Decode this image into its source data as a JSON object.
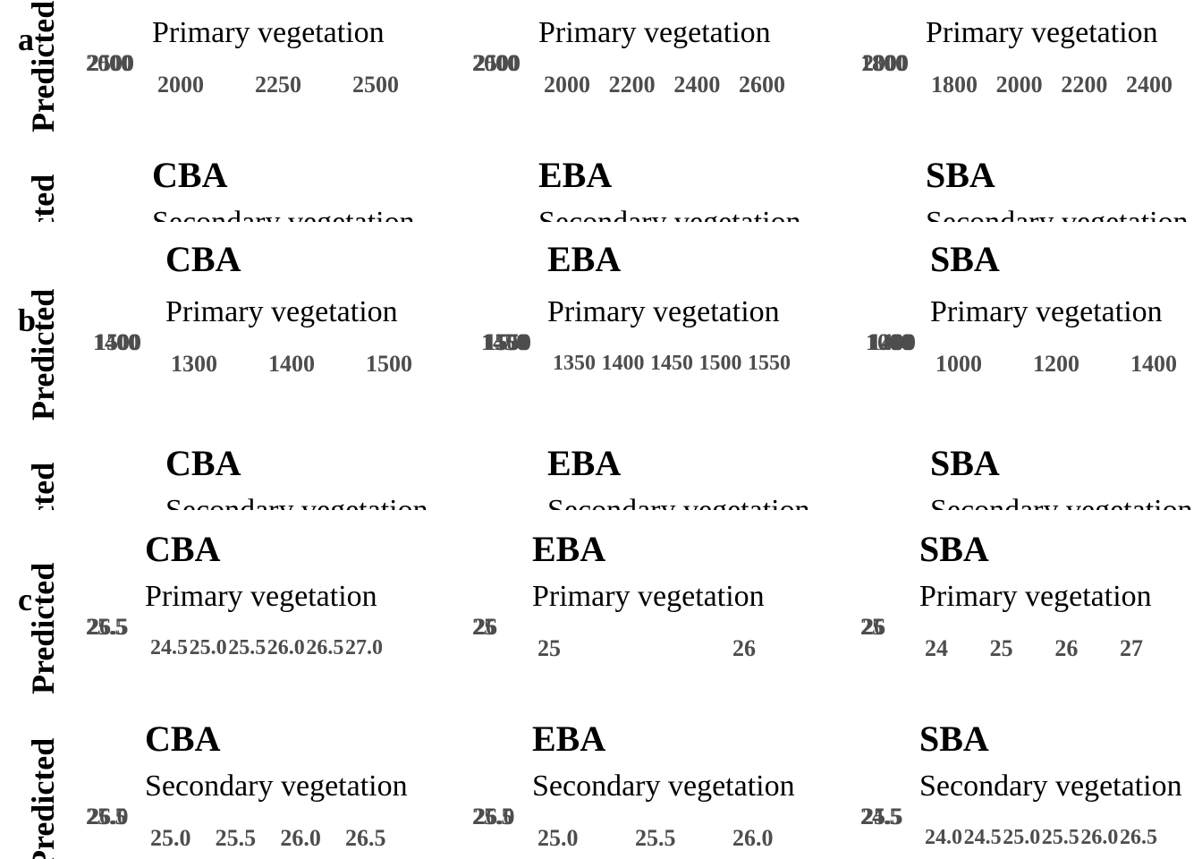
{
  "chart_data": [
    {
      "type": "scatter",
      "panel": "a",
      "ylabel": "Predicted",
      "facets": [
        {
          "region": "",
          "vegetation": "Primary vegetation",
          "x_ticks": [
            "2000",
            "2250",
            "2500"
          ],
          "y_ticks": [
            "2000",
            "2500"
          ]
        },
        {
          "region": "",
          "vegetation": "Primary vegetation",
          "x_ticks": [
            "2000",
            "2200",
            "2400",
            "2600"
          ],
          "y_ticks": [
            "2000",
            "2500"
          ]
        },
        {
          "region": "",
          "vegetation": "Primary vegetation",
          "x_ticks": [
            "1800",
            "2000",
            "2200",
            "2400"
          ],
          "y_ticks": [
            "1800",
            "2000"
          ]
        },
        {
          "region": "CBA",
          "vegetation": "Secondary vegetation",
          "x_ticks": [],
          "y_ticks": []
        },
        {
          "region": "EBA",
          "vegetation": "Secondary vegetation",
          "x_ticks": [],
          "y_ticks": []
        },
        {
          "region": "SBA",
          "vegetation": "Secondary vegetation",
          "x_ticks": [],
          "y_ticks": []
        }
      ]
    },
    {
      "type": "scatter",
      "panel": "b",
      "ylabel": "Predicted",
      "facets": [
        {
          "region": "CBA",
          "vegetation": "Primary vegetation",
          "x_ticks": [
            "1300",
            "1400",
            "1500"
          ],
          "y_ticks": [
            "1400",
            "1500"
          ]
        },
        {
          "region": "EBA",
          "vegetation": "Primary vegetation",
          "x_ticks": [
            "1350",
            "1400",
            "1450",
            "1500",
            "1550"
          ],
          "y_ticks": [
            "1450",
            "1500",
            "1550"
          ]
        },
        {
          "region": "SBA",
          "vegetation": "Primary vegetation",
          "x_ticks": [
            "1000",
            "1200",
            "1400"
          ],
          "y_ticks": [
            "1000",
            "1200",
            "1400"
          ]
        },
        {
          "region": "CBA",
          "vegetation": "Secondary vegetation",
          "x_ticks": [],
          "y_ticks": []
        },
        {
          "region": "EBA",
          "vegetation": "Secondary vegetation",
          "x_ticks": [],
          "y_ticks": []
        },
        {
          "region": "SBA",
          "vegetation": "Secondary vegetation",
          "x_ticks": [],
          "y_ticks": []
        }
      ]
    },
    {
      "type": "scatter",
      "panel": "c",
      "ylabel": "Predicted",
      "facets": [
        {
          "region": "CBA",
          "vegetation": "Primary vegetation",
          "x_ticks": [
            "24.5",
            "25.0",
            "25.5",
            "26.0",
            "26.5",
            "27.0"
          ],
          "y_ticks": [
            "25.5",
            "26.5"
          ]
        },
        {
          "region": "EBA",
          "vegetation": "Primary vegetation",
          "x_ticks": [
            "25",
            "26"
          ],
          "y_ticks": [
            "25",
            "26"
          ]
        },
        {
          "region": "SBA",
          "vegetation": "Primary vegetation",
          "x_ticks": [
            "24",
            "25",
            "26",
            "27"
          ],
          "y_ticks": [
            "25",
            "26"
          ]
        },
        {
          "region": "CBA",
          "vegetation": "Secondary vegetation",
          "x_ticks": [
            "25.0",
            "25.5",
            "26.0",
            "26.5"
          ],
          "y_ticks": [
            "25.5",
            "26.0"
          ]
        },
        {
          "region": "EBA",
          "vegetation": "Secondary vegetation",
          "x_ticks": [
            "25.0",
            "25.5",
            "26.0"
          ],
          "y_ticks": [
            "25.5",
            "26.0"
          ]
        },
        {
          "region": "SBA",
          "vegetation": "Secondary vegetation",
          "x_ticks": [
            "24.0",
            "24.5",
            "25.0",
            "25.5",
            "26.0",
            "26.5"
          ],
          "y_ticks": [
            "24.5",
            "25.5"
          ]
        }
      ]
    }
  ]
}
